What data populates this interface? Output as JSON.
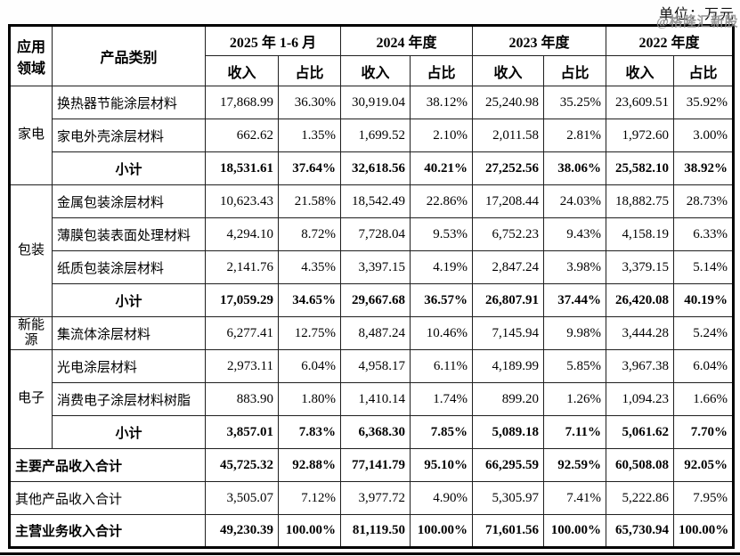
{
  "meta": {
    "unit_label": "单位：万元",
    "watermark": "@格隆汇新股"
  },
  "table": {
    "header": {
      "col_application": "应用领域",
      "col_category": "产品类别",
      "periods": [
        "2025 年 1-6 月",
        "2024 年度",
        "2023 年度",
        "2022 年度"
      ],
      "sub_revenue": "收入",
      "sub_share": "占比"
    },
    "rows": [
      {
        "group": "家电",
        "group_span": 3,
        "type": "product",
        "label": "换热器节能涂层材料",
        "values": [
          "17,868.99",
          "36.30%",
          "30,919.04",
          "38.12%",
          "25,240.98",
          "35.25%",
          "23,609.51",
          "35.92%"
        ]
      },
      {
        "type": "product",
        "label": "家电外壳涂层材料",
        "values": [
          "662.62",
          "1.35%",
          "1,699.52",
          "2.10%",
          "2,011.58",
          "2.81%",
          "1,972.60",
          "3.00%"
        ]
      },
      {
        "type": "subtotal",
        "label": "小计",
        "values": [
          "18,531.61",
          "37.64%",
          "32,618.56",
          "40.21%",
          "27,252.56",
          "38.06%",
          "25,582.10",
          "38.92%"
        ]
      },
      {
        "group": "包装",
        "group_span": 4,
        "type": "product",
        "label": "金属包装涂层材料",
        "values": [
          "10,623.43",
          "21.58%",
          "18,542.49",
          "22.86%",
          "17,208.44",
          "24.03%",
          "18,882.75",
          "28.73%"
        ]
      },
      {
        "type": "product",
        "label": "薄膜包装表面处理材料",
        "values": [
          "4,294.10",
          "8.72%",
          "7,728.04",
          "9.53%",
          "6,752.23",
          "9.43%",
          "4,158.19",
          "6.33%"
        ]
      },
      {
        "type": "product",
        "label": "纸质包装涂层材料",
        "values": [
          "2,141.76",
          "4.35%",
          "3,397.15",
          "4.19%",
          "2,847.24",
          "3.98%",
          "3,379.15",
          "5.14%"
        ]
      },
      {
        "type": "subtotal",
        "label": "小计",
        "values": [
          "17,059.29",
          "34.65%",
          "29,667.68",
          "36.57%",
          "26,807.91",
          "37.44%",
          "26,420.08",
          "40.19%"
        ]
      },
      {
        "group": "新能源",
        "group_span": 1,
        "type": "product",
        "label": "集流体涂层材料",
        "values": [
          "6,277.41",
          "12.75%",
          "8,487.24",
          "10.46%",
          "7,145.94",
          "9.98%",
          "3,444.28",
          "5.24%"
        ]
      },
      {
        "group": "电子",
        "group_span": 3,
        "type": "product",
        "label": "光电涂层材料",
        "values": [
          "2,973.11",
          "6.04%",
          "4,958.17",
          "6.11%",
          "4,189.99",
          "5.85%",
          "3,967.38",
          "6.04%"
        ]
      },
      {
        "type": "product",
        "label": "消费电子涂层材料树脂",
        "values": [
          "883.90",
          "1.80%",
          "1,410.14",
          "1.74%",
          "899.20",
          "1.26%",
          "1,094.23",
          "1.66%"
        ]
      },
      {
        "type": "subtotal",
        "label": "小计",
        "values": [
          "3,857.01",
          "7.83%",
          "6,368.30",
          "7.85%",
          "5,089.18",
          "7.11%",
          "5,061.62",
          "7.70%"
        ]
      },
      {
        "type": "total",
        "label": "主要产品收入合计",
        "values": [
          "45,725.32",
          "92.88%",
          "77,141.79",
          "95.10%",
          "66,295.59",
          "92.59%",
          "60,508.08",
          "92.05%"
        ]
      },
      {
        "type": "total_regular",
        "label": "其他产品收入合计",
        "values": [
          "3,505.07",
          "7.12%",
          "3,977.72",
          "4.90%",
          "5,305.97",
          "7.41%",
          "5,222.86",
          "7.95%"
        ]
      },
      {
        "type": "total",
        "label": "主营业务收入合计",
        "values": [
          "49,230.39",
          "100.00%",
          "81,119.50",
          "100.00%",
          "71,601.56",
          "100.00%",
          "65,730.94",
          "100.00%"
        ]
      }
    ]
  }
}
